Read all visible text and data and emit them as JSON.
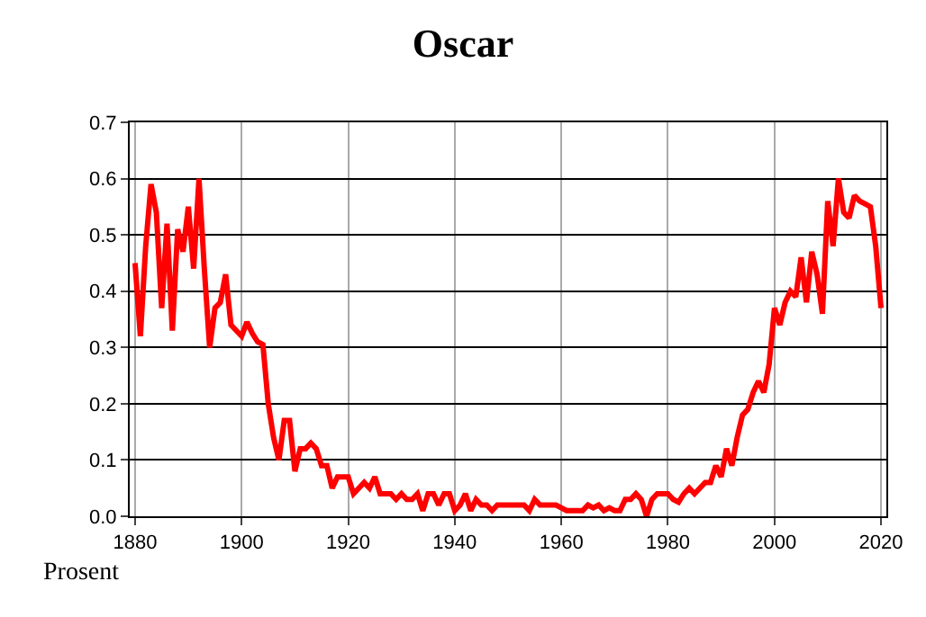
{
  "chart_data": {
    "type": "line",
    "title": "Oscar",
    "ylabel": "Prosent",
    "x": [
      1880,
      1881,
      1882,
      1883,
      1884,
      1885,
      1886,
      1887,
      1888,
      1889,
      1890,
      1891,
      1892,
      1893,
      1894,
      1895,
      1896,
      1897,
      1898,
      1899,
      1900,
      1901,
      1902,
      1903,
      1904,
      1905,
      1906,
      1907,
      1908,
      1909,
      1910,
      1911,
      1912,
      1913,
      1914,
      1915,
      1916,
      1917,
      1918,
      1919,
      1920,
      1921,
      1922,
      1923,
      1924,
      1925,
      1926,
      1927,
      1928,
      1929,
      1930,
      1931,
      1932,
      1933,
      1934,
      1935,
      1936,
      1937,
      1938,
      1939,
      1940,
      1941,
      1942,
      1943,
      1944,
      1945,
      1946,
      1947,
      1948,
      1949,
      1950,
      1951,
      1952,
      1953,
      1954,
      1955,
      1956,
      1957,
      1958,
      1959,
      1960,
      1961,
      1962,
      1963,
      1964,
      1965,
      1966,
      1967,
      1968,
      1969,
      1970,
      1971,
      1972,
      1973,
      1974,
      1975,
      1976,
      1977,
      1978,
      1979,
      1980,
      1981,
      1982,
      1983,
      1984,
      1985,
      1986,
      1987,
      1988,
      1989,
      1990,
      1991,
      1992,
      1993,
      1994,
      1995,
      1996,
      1997,
      1998,
      1999,
      2000,
      2001,
      2002,
      2003,
      2004,
      2005,
      2006,
      2007,
      2008,
      2009,
      2010,
      2011,
      2012,
      2013,
      2014,
      2015,
      2016,
      2017,
      2018,
      2019,
      2020
    ],
    "series": [
      {
        "color": "#ff0000",
        "values": [
          0.45,
          0.32,
          0.48,
          0.59,
          0.54,
          0.37,
          0.52,
          0.33,
          0.51,
          0.47,
          0.55,
          0.44,
          0.6,
          0.44,
          0.3,
          0.37,
          0.38,
          0.43,
          0.34,
          0.33,
          0.32,
          0.345,
          0.325,
          0.31,
          0.305,
          0.2,
          0.14,
          0.1,
          0.17,
          0.17,
          0.08,
          0.12,
          0.12,
          0.13,
          0.12,
          0.09,
          0.09,
          0.05,
          0.07,
          0.07,
          0.07,
          0.04,
          0.05,
          0.06,
          0.05,
          0.07,
          0.04,
          0.04,
          0.04,
          0.03,
          0.04,
          0.03,
          0.03,
          0.04,
          0.01,
          0.04,
          0.04,
          0.02,
          0.04,
          0.04,
          0.01,
          0.02,
          0.04,
          0.01,
          0.03,
          0.02,
          0.02,
          0.01,
          0.02,
          0.02,
          0.02,
          0.02,
          0.02,
          0.02,
          0.01,
          0.03,
          0.02,
          0.02,
          0.02,
          0.02,
          0.015,
          0.01,
          0.01,
          0.01,
          0.01,
          0.02,
          0.015,
          0.02,
          0.01,
          0.015,
          0.01,
          0.01,
          0.03,
          0.03,
          0.04,
          0.03,
          0.0,
          0.03,
          0.04,
          0.04,
          0.04,
          0.03,
          0.025,
          0.04,
          0.05,
          0.04,
          0.05,
          0.06,
          0.06,
          0.09,
          0.07,
          0.12,
          0.09,
          0.14,
          0.18,
          0.19,
          0.22,
          0.24,
          0.22,
          0.27,
          0.37,
          0.34,
          0.38,
          0.4,
          0.39,
          0.46,
          0.38,
          0.47,
          0.43,
          0.36,
          0.56,
          0.48,
          0.6,
          0.54,
          0.53,
          0.57,
          0.56,
          0.555,
          0.55,
          0.48,
          0.37
        ]
      }
    ],
    "xlim": [
      1879,
      2021
    ],
    "xticks": [
      1880,
      1900,
      1920,
      1940,
      1960,
      1980,
      2000,
      2020
    ],
    "ylim": [
      0,
      0.7
    ],
    "yticks": [
      {
        "value": 0,
        "label": "0.0"
      },
      0.1,
      0.2,
      0.3,
      0.4,
      0.5,
      0.6,
      0.7
    ],
    "grid": true
  }
}
